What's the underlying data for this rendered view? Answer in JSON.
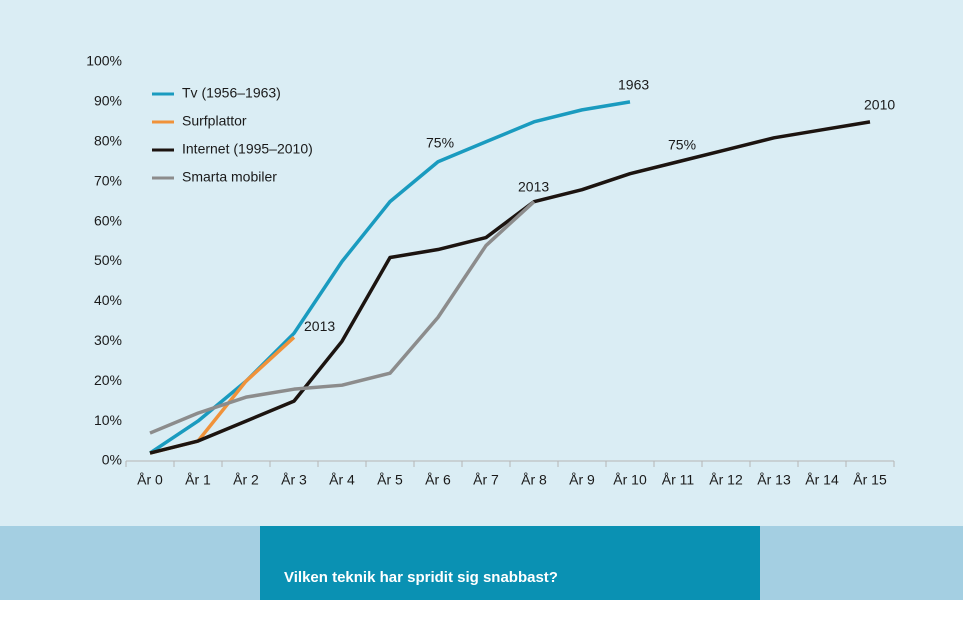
{
  "chart_data": {
    "type": "line",
    "footer": "Vilken teknik har spridit sig snabbast?",
    "categories": [
      "År 0",
      "År 1",
      "År 2",
      "År 3",
      "År 4",
      "År 5",
      "År 6",
      "År 7",
      "År 8",
      "År 9",
      "År 10",
      "År 11",
      "År 12",
      "År 13",
      "År 14",
      "År 15"
    ],
    "series": [
      {
        "name": "Tv (1956–1963)",
        "color": "#1a9bbf",
        "values": [
          2,
          10,
          20,
          32,
          50,
          65,
          75,
          80,
          85,
          88,
          90,
          null,
          null,
          null,
          null,
          null
        ]
      },
      {
        "name": "Surfplattor",
        "color": "#f0923a",
        "values": [
          2,
          5,
          20,
          31,
          null,
          null,
          null,
          null,
          null,
          null,
          null,
          null,
          null,
          null,
          null,
          null
        ]
      },
      {
        "name": "Internet (1995–2010)",
        "color": "#1c1410",
        "values": [
          2,
          5,
          10,
          15,
          30,
          51,
          53,
          56,
          65,
          68,
          72,
          75,
          78,
          81,
          83,
          85
        ]
      },
      {
        "name": "Smarta mobiler",
        "color": "#8c8c8c",
        "values": [
          7,
          12,
          16,
          18,
          19,
          22,
          36,
          54,
          65,
          null,
          null,
          null,
          null,
          null,
          null,
          null
        ]
      }
    ],
    "annotations": [
      {
        "text": "1963",
        "x": "År 10",
        "y": 90
      },
      {
        "text": "75%",
        "x": "År 6",
        "y": 75
      },
      {
        "text": "2013",
        "x": "År 3",
        "y": 31
      },
      {
        "text": "2013",
        "x": "År 8",
        "y": 65
      },
      {
        "text": "75%",
        "x": "År 11",
        "y": 75
      },
      {
        "text": "2010",
        "x": "År 15",
        "y": 85
      }
    ],
    "ylim": [
      0,
      100
    ],
    "yticks": [
      {
        "value": 0,
        "label": "0%"
      },
      {
        "value": 10,
        "label": "10%"
      },
      {
        "value": 20,
        "label": "20%"
      },
      {
        "value": 30,
        "label": "30%"
      },
      {
        "value": 40,
        "label": "40%"
      },
      {
        "value": 50,
        "label": "50%"
      },
      {
        "value": 60,
        "label": "60%"
      },
      {
        "value": 70,
        "label": "70%"
      },
      {
        "value": 80,
        "label": "80%"
      },
      {
        "value": 90,
        "label": "90%"
      },
      {
        "value": 100,
        "label": "100%"
      }
    ],
    "legend": "upper-left",
    "grid": false
  }
}
